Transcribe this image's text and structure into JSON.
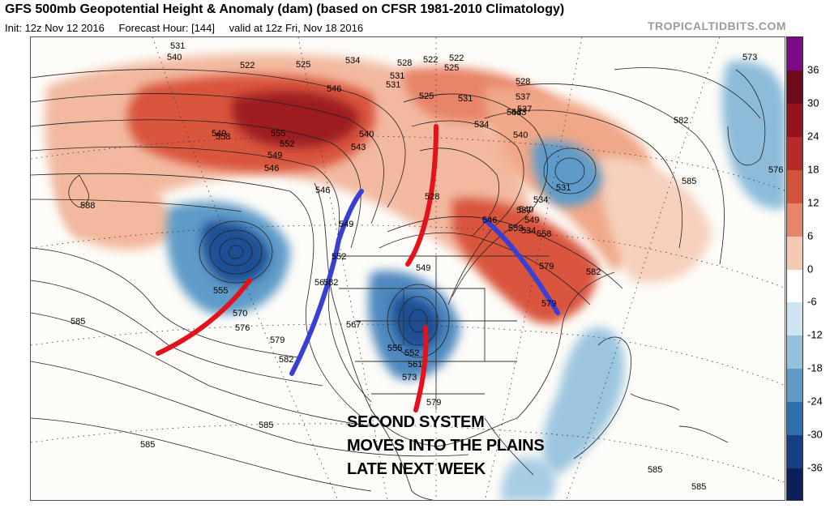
{
  "header": {
    "title": "GFS 500mb Geopotential Height & Anomaly (dam) (based on CFSR 1981-2010 Climatology)",
    "init": "Init: 12z Nov 12 2016",
    "forecast_hour": "Forecast Hour: [144]",
    "valid": "valid at 12z Fri, Nov 18 2016",
    "brand": "TROPICALTIDBITS.COM"
  },
  "annotation": {
    "lines": [
      "SECOND SYSTEM",
      "MOVES INTO THE PLAINS",
      "LATE NEXT WEEK"
    ]
  },
  "colorbar": {
    "labels": [
      "36",
      "30",
      "24",
      "18",
      "12",
      "6",
      "0",
      "-6",
      "-12",
      "-18",
      "-24",
      "-30",
      "-36"
    ],
    "colors": [
      "#7a0a86",
      "#6e0a1a",
      "#94131f",
      "#b82a2a",
      "#d2523a",
      "#e5866a",
      "#f5c8b2",
      "#ffffff",
      "#cfe3f0",
      "#94c2dc",
      "#5e9bc8",
      "#2f6fad",
      "#163f85",
      "#0c1f5a"
    ]
  },
  "map_labels": [
    {
      "text": "531"
    },
    {
      "text": "540"
    },
    {
      "text": "522"
    },
    {
      "text": "525"
    },
    {
      "text": "534"
    },
    {
      "text": "528"
    },
    {
      "text": "522"
    },
    {
      "text": "531"
    },
    {
      "text": "525"
    },
    {
      "text": "528"
    },
    {
      "text": "537"
    },
    {
      "text": "573"
    },
    {
      "text": "537"
    },
    {
      "text": "543"
    },
    {
      "text": "549"
    },
    {
      "text": "546"
    },
    {
      "text": "558"
    },
    {
      "text": "555"
    },
    {
      "text": "552"
    },
    {
      "text": "549"
    },
    {
      "text": "546"
    },
    {
      "text": "540"
    },
    {
      "text": "543"
    },
    {
      "text": "531"
    },
    {
      "text": "522"
    },
    {
      "text": "525"
    },
    {
      "text": "531"
    },
    {
      "text": "534"
    },
    {
      "text": "543"
    },
    {
      "text": "540"
    },
    {
      "text": "582"
    },
    {
      "text": "588"
    },
    {
      "text": "585"
    },
    {
      "text": "576"
    },
    {
      "text": "531"
    },
    {
      "text": "534"
    },
    {
      "text": "528"
    },
    {
      "text": "546"
    },
    {
      "text": "549"
    },
    {
      "text": "537"
    },
    {
      "text": "540"
    },
    {
      "text": "546"
    },
    {
      "text": "552"
    },
    {
      "text": "558"
    },
    {
      "text": "549"
    },
    {
      "text": "579"
    },
    {
      "text": "534"
    },
    {
      "text": "552"
    },
    {
      "text": "549"
    },
    {
      "text": "555"
    },
    {
      "text": "570"
    },
    {
      "text": "576"
    },
    {
      "text": "579"
    },
    {
      "text": "582"
    },
    {
      "text": "567"
    },
    {
      "text": "555"
    },
    {
      "text": "552"
    },
    {
      "text": "561"
    },
    {
      "text": "573"
    },
    {
      "text": "579"
    },
    {
      "text": "582"
    },
    {
      "text": "585"
    },
    {
      "text": "585"
    },
    {
      "text": "585"
    },
    {
      "text": "585"
    },
    {
      "text": "585"
    },
    {
      "text": "579"
    },
    {
      "text": "582"
    },
    {
      "text": "56"
    }
  ]
}
